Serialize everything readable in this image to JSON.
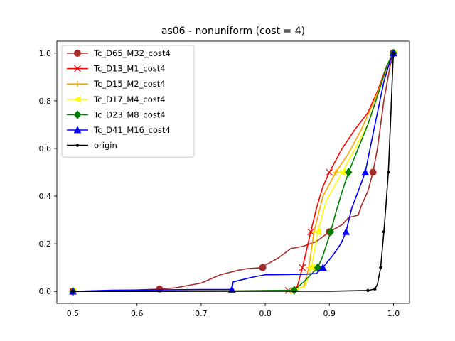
{
  "chart_data": {
    "type": "line",
    "title": "as06 - nonuniform (cost = 4)",
    "xlabel": "",
    "ylabel": "",
    "xlim": [
      0.475,
      1.025
    ],
    "ylim": [
      -0.05,
      1.05
    ],
    "xticks": [
      0.5,
      0.6,
      0.7,
      0.8,
      0.9,
      1.0
    ],
    "xtick_labels": [
      "0.5",
      "0.6",
      "0.7",
      "0.8",
      "0.9",
      "1.0"
    ],
    "yticks": [
      0.0,
      0.2,
      0.4,
      0.6,
      0.8,
      1.0
    ],
    "ytick_labels": [
      "0.0",
      "0.2",
      "0.4",
      "0.6",
      "0.8",
      "1.0"
    ],
    "grid": false,
    "legend_position": "upper-left",
    "series": [
      {
        "name": "Tc_D65_M32_cost4",
        "color": "#a52a2a",
        "marker": "circle",
        "points": [
          [
            0.5,
            0.0
          ],
          [
            0.56,
            0.003
          ],
          [
            0.6,
            0.006
          ],
          [
            0.635,
            0.01
          ],
          [
            0.66,
            0.015
          ],
          [
            0.7,
            0.035
          ],
          [
            0.73,
            0.07
          ],
          [
            0.76,
            0.09
          ],
          [
            0.77,
            0.095
          ],
          [
            0.796,
            0.1
          ],
          [
            0.8,
            0.11
          ],
          [
            0.82,
            0.14
          ],
          [
            0.84,
            0.18
          ],
          [
            0.86,
            0.19
          ],
          [
            0.88,
            0.21
          ],
          [
            0.9,
            0.25
          ],
          [
            0.92,
            0.28
          ],
          [
            0.93,
            0.31
          ],
          [
            0.945,
            0.32
          ],
          [
            0.95,
            0.36
          ],
          [
            0.96,
            0.42
          ],
          [
            0.968,
            0.5
          ],
          [
            0.975,
            0.6
          ],
          [
            0.985,
            0.8
          ],
          [
            0.995,
            0.95
          ],
          [
            1.0,
            1.0
          ]
        ],
        "marker_points": [
          [
            0.5,
            0.0
          ],
          [
            0.635,
            0.01
          ],
          [
            0.796,
            0.1
          ],
          [
            0.9,
            0.25
          ],
          [
            0.968,
            0.5
          ],
          [
            1.0,
            1.0
          ]
        ]
      },
      {
        "name": "Tc_D13_M1_cost4",
        "color": "#ff0000",
        "marker": "x",
        "points": [
          [
            0.5,
            0.0
          ],
          [
            0.7,
            0.002
          ],
          [
            0.836,
            0.004
          ],
          [
            0.85,
            0.02
          ],
          [
            0.858,
            0.1
          ],
          [
            0.865,
            0.18
          ],
          [
            0.871,
            0.25
          ],
          [
            0.88,
            0.35
          ],
          [
            0.89,
            0.44
          ],
          [
            0.9,
            0.5
          ],
          [
            0.92,
            0.6
          ],
          [
            0.94,
            0.68
          ],
          [
            0.96,
            0.75
          ],
          [
            0.975,
            0.84
          ],
          [
            0.99,
            0.95
          ],
          [
            1.0,
            1.0
          ]
        ],
        "marker_points": [
          [
            0.5,
            0.0
          ],
          [
            0.836,
            0.004
          ],
          [
            0.858,
            0.1
          ],
          [
            0.871,
            0.25
          ],
          [
            0.9,
            0.5
          ],
          [
            1.0,
            1.0
          ]
        ]
      },
      {
        "name": "Tc_D15_M2_cost4",
        "color": "#ffa500",
        "marker": "plus",
        "points": [
          [
            0.5,
            0.0
          ],
          [
            0.7,
            0.002
          ],
          [
            0.84,
            0.003
          ],
          [
            0.86,
            0.02
          ],
          [
            0.868,
            0.1
          ],
          [
            0.876,
            0.25
          ],
          [
            0.89,
            0.4
          ],
          [
            0.91,
            0.5
          ],
          [
            0.93,
            0.58
          ],
          [
            0.95,
            0.68
          ],
          [
            0.97,
            0.8
          ],
          [
            0.985,
            0.9
          ],
          [
            0.995,
            0.98
          ],
          [
            1.0,
            1.0
          ]
        ],
        "marker_points": [
          [
            0.5,
            0.0
          ],
          [
            0.84,
            0.003
          ],
          [
            0.868,
            0.1
          ],
          [
            0.876,
            0.25
          ],
          [
            0.91,
            0.5
          ],
          [
            1.0,
            1.0
          ]
        ]
      },
      {
        "name": "Tc_D17_M4_cost4",
        "color": "#ffff00",
        "marker": "triangle-left",
        "points": [
          [
            0.5,
            0.0
          ],
          [
            0.7,
            0.002
          ],
          [
            0.84,
            0.003
          ],
          [
            0.862,
            0.02
          ],
          [
            0.872,
            0.1
          ],
          [
            0.882,
            0.25
          ],
          [
            0.895,
            0.38
          ],
          [
            0.92,
            0.5
          ],
          [
            0.94,
            0.6
          ],
          [
            0.96,
            0.7
          ],
          [
            0.975,
            0.82
          ],
          [
            0.99,
            0.95
          ],
          [
            1.0,
            1.0
          ]
        ],
        "marker_points": [
          [
            0.5,
            0.0
          ],
          [
            0.84,
            0.003
          ],
          [
            0.872,
            0.1
          ],
          [
            0.882,
            0.25
          ],
          [
            0.92,
            0.5
          ],
          [
            1.0,
            1.0
          ]
        ]
      },
      {
        "name": "Tc_D23_M8_cost4",
        "color": "#008000",
        "marker": "diamond",
        "points": [
          [
            0.5,
            0.0
          ],
          [
            0.75,
            0.002
          ],
          [
            0.845,
            0.005
          ],
          [
            0.86,
            0.04
          ],
          [
            0.882,
            0.1
          ],
          [
            0.89,
            0.15
          ],
          [
            0.902,
            0.25
          ],
          [
            0.91,
            0.33
          ],
          [
            0.92,
            0.42
          ],
          [
            0.93,
            0.5
          ],
          [
            0.945,
            0.6
          ],
          [
            0.96,
            0.7
          ],
          [
            0.975,
            0.82
          ],
          [
            0.99,
            0.95
          ],
          [
            1.0,
            1.0
          ]
        ],
        "marker_points": [
          [
            0.5,
            0.0
          ],
          [
            0.845,
            0.005
          ],
          [
            0.882,
            0.1
          ],
          [
            0.902,
            0.25
          ],
          [
            0.93,
            0.5
          ],
          [
            1.0,
            1.0
          ]
        ]
      },
      {
        "name": "Tc_D41_M16_cost4",
        "color": "#0000ff",
        "marker": "triangle-up",
        "points": [
          [
            0.5,
            0.0
          ],
          [
            0.56,
            0.005
          ],
          [
            0.7,
            0.008
          ],
          [
            0.748,
            0.008
          ],
          [
            0.75,
            0.04
          ],
          [
            0.78,
            0.06
          ],
          [
            0.8,
            0.07
          ],
          [
            0.86,
            0.072
          ],
          [
            0.88,
            0.075
          ],
          [
            0.885,
            0.09
          ],
          [
            0.89,
            0.1
          ],
          [
            0.905,
            0.15
          ],
          [
            0.918,
            0.2
          ],
          [
            0.926,
            0.25
          ],
          [
            0.935,
            0.35
          ],
          [
            0.945,
            0.42
          ],
          [
            0.956,
            0.5
          ],
          [
            0.965,
            0.62
          ],
          [
            0.975,
            0.75
          ],
          [
            0.985,
            0.88
          ],
          [
            0.995,
            0.97
          ],
          [
            1.0,
            1.0
          ]
        ],
        "marker_points": [
          [
            0.5,
            0.0
          ],
          [
            0.748,
            0.008
          ],
          [
            0.89,
            0.1
          ],
          [
            0.926,
            0.25
          ],
          [
            0.956,
            0.5
          ],
          [
            1.0,
            1.0
          ]
        ]
      },
      {
        "name": "origin",
        "color": "#000000",
        "marker": "point",
        "points": [
          [
            0.5,
            0.0
          ],
          [
            0.9,
            0.001
          ],
          [
            0.96,
            0.004
          ],
          [
            0.971,
            0.01
          ],
          [
            0.975,
            0.03
          ],
          [
            0.98,
            0.1
          ],
          [
            0.985,
            0.25
          ],
          [
            0.988,
            0.35
          ],
          [
            0.992,
            0.5
          ],
          [
            0.996,
            0.75
          ],
          [
            0.999,
            0.95
          ],
          [
            1.0,
            1.0
          ]
        ],
        "marker_points": [
          [
            0.5,
            0.0
          ],
          [
            0.96,
            0.004
          ],
          [
            0.971,
            0.01
          ],
          [
            0.98,
            0.1
          ],
          [
            0.985,
            0.25
          ],
          [
            0.992,
            0.5
          ],
          [
            1.0,
            1.0
          ]
        ]
      }
    ]
  }
}
